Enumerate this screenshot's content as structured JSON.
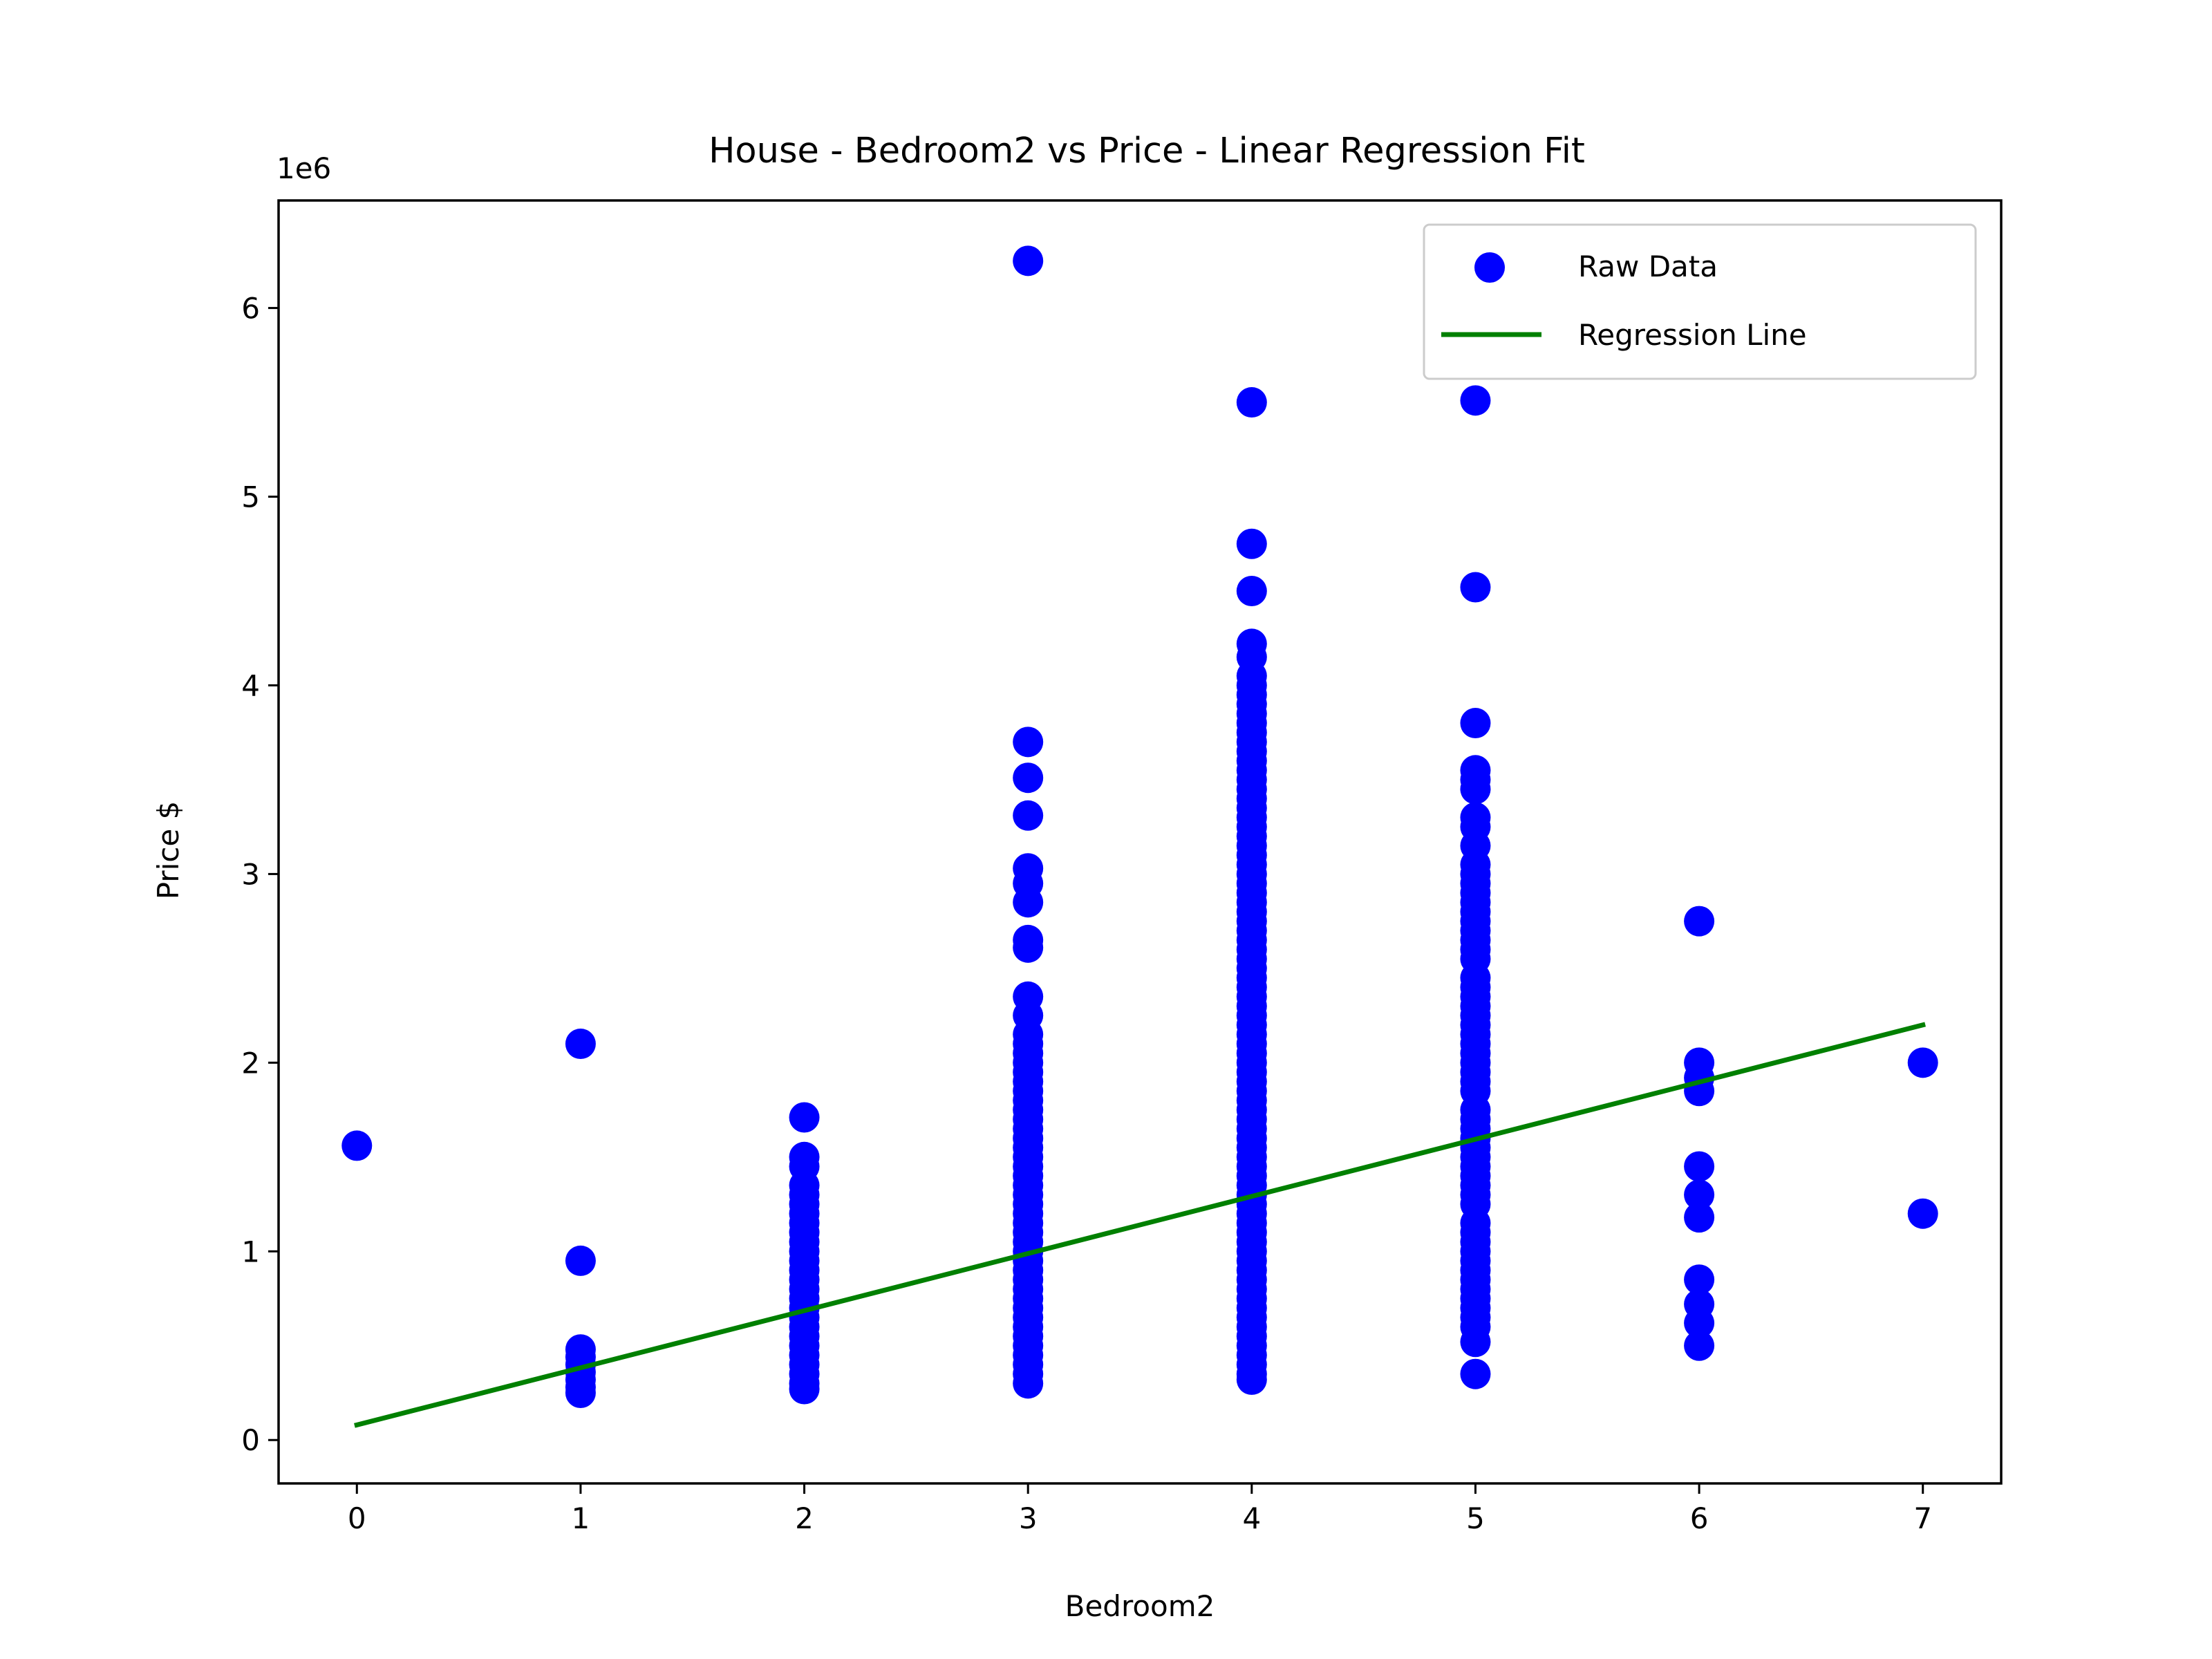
{
  "chart_data": {
    "type": "scatter",
    "title": "House - Bedroom2 vs Price - Linear Regression Fit",
    "xlabel": "Bedroom2",
    "ylabel": "Price $",
    "y_scale_label": "1e6",
    "xlim": [
      -0.35,
      7.35
    ],
    "ylim": [
      -0.23,
      6.57
    ],
    "x_ticks": [
      0,
      1,
      2,
      3,
      4,
      5,
      6,
      7
    ],
    "y_ticks": [
      0,
      1,
      2,
      3,
      4,
      5,
      6
    ],
    "grid": false,
    "legend_position": "top-right",
    "colors": {
      "scatter": "#0000ff",
      "line": "#008000",
      "axes": "#000000"
    },
    "series": [
      {
        "name": "Raw Data",
        "kind": "scatter",
        "points": [
          [
            0,
            1.56
          ],
          [
            1,
            2.1
          ],
          [
            1,
            0.95
          ],
          [
            1,
            0.48
          ],
          [
            1,
            0.44
          ],
          [
            1,
            0.4
          ],
          [
            1,
            0.36
          ],
          [
            1,
            0.32
          ],
          [
            1,
            0.28
          ],
          [
            1,
            0.25
          ],
          [
            2,
            1.71
          ],
          [
            2,
            1.5
          ],
          [
            2,
            1.45
          ],
          [
            2,
            1.35
          ],
          [
            2,
            1.3
          ],
          [
            2,
            1.25
          ],
          [
            2,
            1.2
          ],
          [
            2,
            1.15
          ],
          [
            2,
            1.1
          ],
          [
            2,
            1.05
          ],
          [
            2,
            1.0
          ],
          [
            2,
            0.95
          ],
          [
            2,
            0.9
          ],
          [
            2,
            0.85
          ],
          [
            2,
            0.8
          ],
          [
            2,
            0.75
          ],
          [
            2,
            0.7
          ],
          [
            2,
            0.65
          ],
          [
            2,
            0.6
          ],
          [
            2,
            0.55
          ],
          [
            2,
            0.5
          ],
          [
            2,
            0.45
          ],
          [
            2,
            0.4
          ],
          [
            2,
            0.35
          ],
          [
            2,
            0.3
          ],
          [
            2,
            0.27
          ],
          [
            3,
            6.25
          ],
          [
            3,
            3.7
          ],
          [
            3,
            3.51
          ],
          [
            3,
            3.31
          ],
          [
            3,
            3.03
          ],
          [
            3,
            2.95
          ],
          [
            3,
            2.85
          ],
          [
            3,
            2.65
          ],
          [
            3,
            2.61
          ],
          [
            3,
            2.35
          ],
          [
            3,
            2.25
          ],
          [
            3,
            2.15
          ],
          [
            3,
            2.1
          ],
          [
            3,
            2.05
          ],
          [
            3,
            2.0
          ],
          [
            3,
            1.95
          ],
          [
            3,
            1.9
          ],
          [
            3,
            1.85
          ],
          [
            3,
            1.8
          ],
          [
            3,
            1.75
          ],
          [
            3,
            1.7
          ],
          [
            3,
            1.65
          ],
          [
            3,
            1.6
          ],
          [
            3,
            1.55
          ],
          [
            3,
            1.5
          ],
          [
            3,
            1.45
          ],
          [
            3,
            1.4
          ],
          [
            3,
            1.35
          ],
          [
            3,
            1.3
          ],
          [
            3,
            1.25
          ],
          [
            3,
            1.2
          ],
          [
            3,
            1.15
          ],
          [
            3,
            1.1
          ],
          [
            3,
            1.05
          ],
          [
            3,
            1.0
          ],
          [
            3,
            0.95
          ],
          [
            3,
            0.9
          ],
          [
            3,
            0.85
          ],
          [
            3,
            0.8
          ],
          [
            3,
            0.75
          ],
          [
            3,
            0.7
          ],
          [
            3,
            0.65
          ],
          [
            3,
            0.6
          ],
          [
            3,
            0.55
          ],
          [
            3,
            0.5
          ],
          [
            3,
            0.45
          ],
          [
            3,
            0.4
          ],
          [
            3,
            0.35
          ],
          [
            3,
            0.3
          ],
          [
            4,
            5.5
          ],
          [
            4,
            4.75
          ],
          [
            4,
            4.5
          ],
          [
            4,
            4.22
          ],
          [
            4,
            4.15
          ],
          [
            4,
            4.05
          ],
          [
            4,
            4.0
          ],
          [
            4,
            3.95
          ],
          [
            4,
            3.9
          ],
          [
            4,
            3.85
          ],
          [
            4,
            3.8
          ],
          [
            4,
            3.75
          ],
          [
            4,
            3.7
          ],
          [
            4,
            3.65
          ],
          [
            4,
            3.6
          ],
          [
            4,
            3.55
          ],
          [
            4,
            3.5
          ],
          [
            4,
            3.45
          ],
          [
            4,
            3.4
          ],
          [
            4,
            3.35
          ],
          [
            4,
            3.3
          ],
          [
            4,
            3.25
          ],
          [
            4,
            3.2
          ],
          [
            4,
            3.15
          ],
          [
            4,
            3.1
          ],
          [
            4,
            3.05
          ],
          [
            4,
            3.0
          ],
          [
            4,
            2.95
          ],
          [
            4,
            2.9
          ],
          [
            4,
            2.85
          ],
          [
            4,
            2.8
          ],
          [
            4,
            2.75
          ],
          [
            4,
            2.7
          ],
          [
            4,
            2.65
          ],
          [
            4,
            2.6
          ],
          [
            4,
            2.55
          ],
          [
            4,
            2.5
          ],
          [
            4,
            2.45
          ],
          [
            4,
            2.4
          ],
          [
            4,
            2.35
          ],
          [
            4,
            2.3
          ],
          [
            4,
            2.25
          ],
          [
            4,
            2.2
          ],
          [
            4,
            2.15
          ],
          [
            4,
            2.1
          ],
          [
            4,
            2.05
          ],
          [
            4,
            2.0
          ],
          [
            4,
            1.95
          ],
          [
            4,
            1.9
          ],
          [
            4,
            1.85
          ],
          [
            4,
            1.8
          ],
          [
            4,
            1.75
          ],
          [
            4,
            1.7
          ],
          [
            4,
            1.65
          ],
          [
            4,
            1.6
          ],
          [
            4,
            1.55
          ],
          [
            4,
            1.5
          ],
          [
            4,
            1.45
          ],
          [
            4,
            1.4
          ],
          [
            4,
            1.35
          ],
          [
            4,
            1.3
          ],
          [
            4,
            1.25
          ],
          [
            4,
            1.2
          ],
          [
            4,
            1.15
          ],
          [
            4,
            1.1
          ],
          [
            4,
            1.05
          ],
          [
            4,
            1.0
          ],
          [
            4,
            0.95
          ],
          [
            4,
            0.9
          ],
          [
            4,
            0.85
          ],
          [
            4,
            0.8
          ],
          [
            4,
            0.75
          ],
          [
            4,
            0.7
          ],
          [
            4,
            0.65
          ],
          [
            4,
            0.6
          ],
          [
            4,
            0.55
          ],
          [
            4,
            0.5
          ],
          [
            4,
            0.45
          ],
          [
            4,
            0.4
          ],
          [
            4,
            0.35
          ],
          [
            4,
            0.32
          ],
          [
            5,
            5.51
          ],
          [
            5,
            4.52
          ],
          [
            5,
            3.8
          ],
          [
            5,
            3.55
          ],
          [
            5,
            3.5
          ],
          [
            5,
            3.45
          ],
          [
            5,
            3.3
          ],
          [
            5,
            3.25
          ],
          [
            5,
            3.15
          ],
          [
            5,
            3.05
          ],
          [
            5,
            3.0
          ],
          [
            5,
            2.95
          ],
          [
            5,
            2.9
          ],
          [
            5,
            2.85
          ],
          [
            5,
            2.8
          ],
          [
            5,
            2.75
          ],
          [
            5,
            2.7
          ],
          [
            5,
            2.65
          ],
          [
            5,
            2.6
          ],
          [
            5,
            2.55
          ],
          [
            5,
            2.45
          ],
          [
            5,
            2.4
          ],
          [
            5,
            2.35
          ],
          [
            5,
            2.3
          ],
          [
            5,
            2.25
          ],
          [
            5,
            2.2
          ],
          [
            5,
            2.15
          ],
          [
            5,
            2.1
          ],
          [
            5,
            2.05
          ],
          [
            5,
            2.0
          ],
          [
            5,
            1.95
          ],
          [
            5,
            1.9
          ],
          [
            5,
            1.85
          ],
          [
            5,
            1.75
          ],
          [
            5,
            1.7
          ],
          [
            5,
            1.65
          ],
          [
            5,
            1.6
          ],
          [
            5,
            1.55
          ],
          [
            5,
            1.5
          ],
          [
            5,
            1.45
          ],
          [
            5,
            1.4
          ],
          [
            5,
            1.35
          ],
          [
            5,
            1.3
          ],
          [
            5,
            1.25
          ],
          [
            5,
            1.15
          ],
          [
            5,
            1.1
          ],
          [
            5,
            1.05
          ],
          [
            5,
            1.0
          ],
          [
            5,
            0.95
          ],
          [
            5,
            0.9
          ],
          [
            5,
            0.85
          ],
          [
            5,
            0.8
          ],
          [
            5,
            0.75
          ],
          [
            5,
            0.7
          ],
          [
            5,
            0.65
          ],
          [
            5,
            0.6
          ],
          [
            5,
            0.52
          ],
          [
            5,
            0.35
          ],
          [
            6,
            2.75
          ],
          [
            6,
            2.0
          ],
          [
            6,
            1.92
          ],
          [
            6,
            1.85
          ],
          [
            6,
            1.45
          ],
          [
            6,
            1.3
          ],
          [
            6,
            1.18
          ],
          [
            6,
            0.85
          ],
          [
            6,
            0.72
          ],
          [
            6,
            0.62
          ],
          [
            6,
            0.5
          ],
          [
            7,
            2.0
          ],
          [
            7,
            1.2
          ]
        ]
      },
      {
        "name": "Regression Line",
        "kind": "line",
        "points": [
          [
            0,
            0.08
          ],
          [
            7,
            2.2
          ]
        ]
      }
    ]
  }
}
